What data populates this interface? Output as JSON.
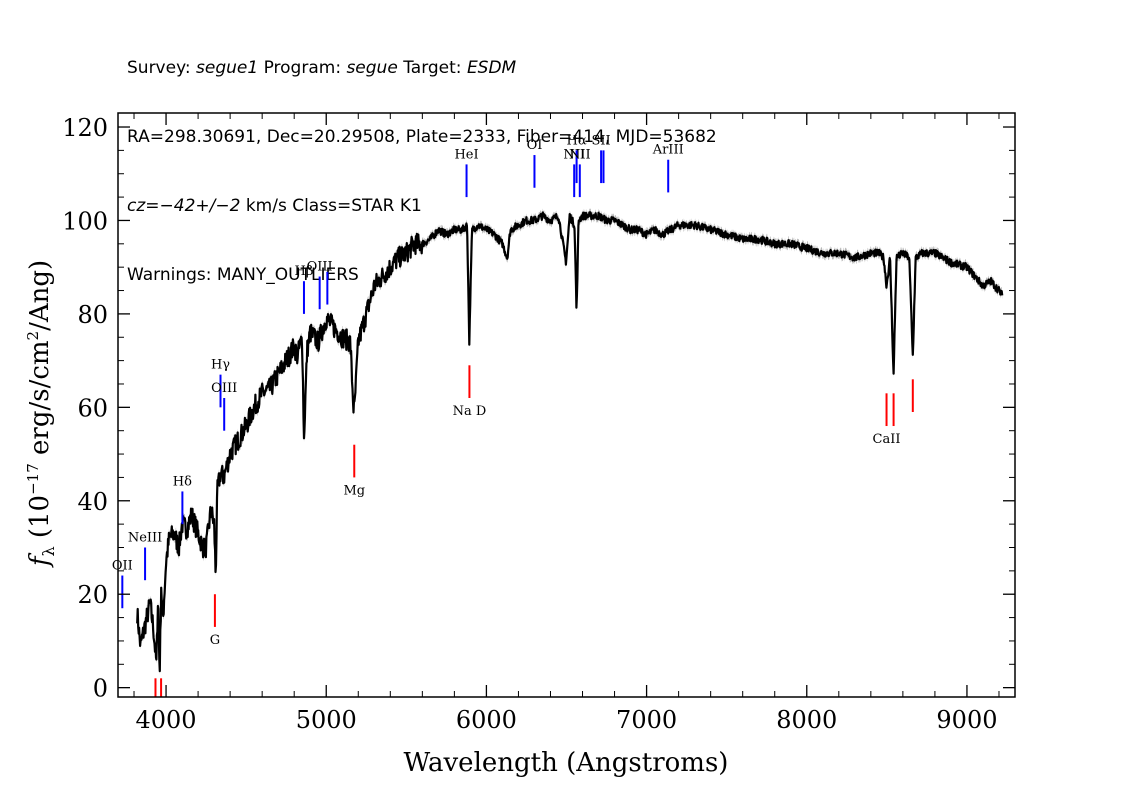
{
  "header": {
    "line1": {
      "survey_label": "Survey: ",
      "survey": "segue1",
      "program_label": " Program: ",
      "program": "segue",
      "target_label": " Target: ",
      "target": "ESDM"
    },
    "line2": "RA=298.30691, Dec=20.29508, Plate=2333, Fiber=414, MJD=53682",
    "line3": {
      "cz": "cz=−42+/−2",
      "rest": " km/s Class=STAR K1"
    },
    "line4": "Warnings: MANY_OUTLIERS"
  },
  "colors": {
    "spectrum": "#000000",
    "error_band": "#b8b8b8",
    "emission_line": "#0000ff",
    "absorption_line": "#ff0000"
  },
  "chart_data": {
    "type": "line",
    "xlabel": "Wavelength (Angstroms)",
    "ylabel": "f_λ (10^-17 erg/s/cm^2/Ang)",
    "xlim": [
      3700,
      9300
    ],
    "ylim": [
      -2,
      123
    ],
    "x_ticks": [
      4000,
      5000,
      6000,
      7000,
      8000,
      9000
    ],
    "y_ticks": [
      0,
      20,
      40,
      60,
      80,
      100,
      120
    ],
    "grid": false,
    "legend": "none",
    "series": [
      {
        "x": [
          3820,
          3840,
          3860,
          3880,
          3900,
          3920,
          3940,
          3950,
          3960,
          3970,
          3980,
          4000,
          4020,
          4050,
          4080,
          4100,
          4130,
          4160,
          4200,
          4230,
          4250,
          4280,
          4300,
          4310,
          4320,
          4340,
          4360,
          4400,
          4450,
          4500,
          4550,
          4600,
          4650,
          4700,
          4750,
          4800,
          4820,
          4850,
          4861,
          4880,
          4900,
          4950,
          5000,
          5050,
          5100,
          5150,
          5170,
          5175,
          5185,
          5200,
          5250,
          5300,
          5350,
          5400,
          5450,
          5500,
          5550,
          5600,
          5650,
          5700,
          5750,
          5800,
          5850,
          5880,
          5893,
          5910,
          5950,
          6000,
          6050,
          6100,
          6130,
          6150,
          6200,
          6250,
          6300,
          6350,
          6400,
          6450,
          6497,
          6520,
          6550,
          6563,
          6575,
          6600,
          6650,
          6700,
          6750,
          6800,
          6850,
          6900,
          6950,
          7000,
          7050,
          7100,
          7150,
          7200,
          7300,
          7400,
          7500,
          7600,
          7700,
          7800,
          7900,
          8000,
          8100,
          8200,
          8300,
          8400,
          8450,
          8480,
          8498,
          8520,
          8542,
          8560,
          8600,
          8640,
          8662,
          8680,
          8720,
          8800,
          8900,
          9000,
          9050,
          9100,
          9150,
          9200,
          9220
        ],
        "y": [
          16,
          9,
          12,
          15,
          18,
          13,
          5,
          20,
          3,
          22,
          14,
          27,
          32,
          33,
          30,
          35,
          34,
          37,
          33,
          30,
          30,
          38,
          35,
          24,
          42,
          46,
          45,
          50,
          53,
          56,
          60,
          63,
          64,
          67,
          70,
          73,
          71,
          75,
          53,
          72,
          76,
          74,
          79,
          77,
          75,
          74,
          60,
          59,
          65,
          74,
          80,
          86,
          88,
          90,
          92,
          93,
          95,
          95,
          96,
          98,
          97,
          98,
          98,
          99,
          74,
          98,
          99,
          98,
          97,
          95,
          92,
          98,
          99,
          100,
          100,
          101,
          100,
          101,
          91,
          101,
          99,
          80,
          100,
          101,
          101,
          101,
          100,
          100,
          99,
          98,
          98,
          97,
          98,
          97,
          98,
          99,
          99,
          98,
          97,
          96,
          96,
          95,
          95,
          94,
          93,
          93,
          92,
          93,
          93,
          92,
          86,
          92,
          67,
          92,
          93,
          92,
          71,
          92,
          93,
          93,
          91,
          90,
          88,
          86,
          87,
          85,
          84
        ]
      }
    ],
    "line_markers": [
      {
        "label": "OII",
        "wavelength": 3727,
        "kind": "emission",
        "y_bottom": 17,
        "y_top": 24
      },
      {
        "label": "NeIII",
        "wavelength": 3869,
        "kind": "emission",
        "y_bottom": 23,
        "y_top": 30
      },
      {
        "label": "Hδ",
        "wavelength": 4102,
        "kind": "emission",
        "y_bottom": 35,
        "y_top": 42
      },
      {
        "label": "Hγ",
        "wavelength": 4340,
        "kind": "emission",
        "y_bottom": 60,
        "y_top": 67
      },
      {
        "label": "OIII",
        "wavelength": 4363,
        "kind": "emission",
        "y_bottom": 55,
        "y_top": 62
      },
      {
        "label": "Hβ",
        "wavelength": 4861,
        "kind": "emission",
        "y_bottom": 80,
        "y_top": 87
      },
      {
        "label": "OIII",
        "wavelength": 4959,
        "kind": "emission",
        "y_bottom": 81,
        "y_top": 88
      },
      {
        "label": "",
        "wavelength": 5007,
        "kind": "emission",
        "y_bottom": 82,
        "y_top": 89
      },
      {
        "label": "HeI",
        "wavelength": 5876,
        "kind": "emission",
        "y_bottom": 105,
        "y_top": 112
      },
      {
        "label": "OI",
        "wavelength": 6300,
        "kind": "emission",
        "y_bottom": 107,
        "y_top": 114
      },
      {
        "label": "NII",
        "wavelength": 6548,
        "kind": "emission",
        "y_bottom": 105,
        "y_top": 112
      },
      {
        "label": "Hα",
        "wavelength": 6563,
        "kind": "emission",
        "y_bottom": 108,
        "y_top": 115
      },
      {
        "label": "NII",
        "wavelength": 6583,
        "kind": "emission",
        "y_bottom": 105,
        "y_top": 112
      },
      {
        "label": "SII",
        "wavelength": 6716,
        "kind": "emission",
        "y_bottom": 108,
        "y_top": 115
      },
      {
        "label": "",
        "wavelength": 6731,
        "kind": "emission",
        "y_bottom": 108,
        "y_top": 115
      },
      {
        "label": "ArIII",
        "wavelength": 7135,
        "kind": "emission",
        "y_bottom": 106,
        "y_top": 113
      },
      {
        "label": "",
        "wavelength": 3934,
        "kind": "absorption",
        "y_bottom": -2,
        "y_top": 2
      },
      {
        "label": "",
        "wavelength": 3969,
        "kind": "absorption",
        "y_bottom": -2,
        "y_top": 2
      },
      {
        "label": "G",
        "wavelength": 4305,
        "kind": "absorption",
        "y_bottom": 13,
        "y_top": 20
      },
      {
        "label": "Mg",
        "wavelength": 5175,
        "kind": "absorption",
        "y_bottom": 45,
        "y_top": 52
      },
      {
        "label": "Na D",
        "wavelength": 5894,
        "kind": "absorption",
        "y_bottom": 62,
        "y_top": 69
      },
      {
        "label": "CaII",
        "wavelength": 8498,
        "kind": "absorption",
        "y_bottom": 56,
        "y_top": 63
      },
      {
        "label": "",
        "wavelength": 8542,
        "kind": "absorption",
        "y_bottom": 56,
        "y_top": 63
      },
      {
        "label": "",
        "wavelength": 8662,
        "kind": "absorption",
        "y_bottom": 59,
        "y_top": 66
      }
    ]
  }
}
